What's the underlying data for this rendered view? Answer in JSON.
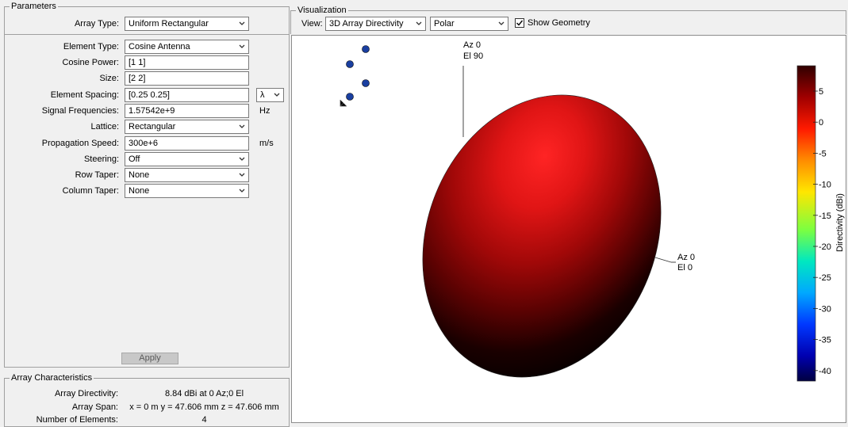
{
  "parameters": {
    "title": "Parameters",
    "array_type": {
      "label": "Array Type:",
      "value": "Uniform Rectangular"
    },
    "element_type": {
      "label": "Element Type:",
      "value": "Cosine Antenna"
    },
    "cosine_power": {
      "label": "Cosine Power:",
      "value": "[1 1]"
    },
    "size": {
      "label": "Size:",
      "value": "[2  2]"
    },
    "element_spacing": {
      "label": "Element Spacing:",
      "value": "[0.25 0.25]",
      "unit": "λ"
    },
    "signal_frequencies": {
      "label": "Signal Frequencies:",
      "value": "1.57542e+9",
      "unit": "Hz"
    },
    "lattice": {
      "label": "Lattice:",
      "value": "Rectangular"
    },
    "propagation_speed": {
      "label": "Propagation Speed:",
      "value": "300e+6",
      "unit": "m/s"
    },
    "steering": {
      "label": "Steering:",
      "value": "Off"
    },
    "row_taper": {
      "label": "Row Taper:",
      "value": "None"
    },
    "column_taper": {
      "label": "Column Taper:",
      "value": "None"
    },
    "apply_label": "Apply"
  },
  "characteristics": {
    "title": "Array Characteristics",
    "directivity": {
      "label": "Array Directivity:",
      "value": "8.84 dBi at 0 Az;0 El"
    },
    "span": {
      "label": "Array Span:",
      "value": "x = 0 m  y = 47.606 mm  z = 47.606 mm"
    },
    "elements": {
      "label": "Number of Elements:",
      "value": "4"
    }
  },
  "visualization": {
    "title": "Visualization",
    "view_label": "View:",
    "view_value": "3D Array Directivity",
    "mode_value": "Polar",
    "show_geometry_label": "Show Geometry",
    "show_geometry_checked": true,
    "annotations": {
      "top": [
        "Az 0",
        "El 90"
      ],
      "side": [
        "Az 0",
        "El 0"
      ]
    },
    "colorbar": {
      "label": "Directivity (dBi)",
      "ticks": [
        "5",
        "0",
        "-5",
        "-10",
        "-15",
        "-20",
        "-25",
        "-30",
        "-35",
        "-40"
      ]
    },
    "colors": {
      "lobe_bright": "#ff2020",
      "lobe_dark": "#000000",
      "element_marker": "#1a3fa0"
    }
  }
}
